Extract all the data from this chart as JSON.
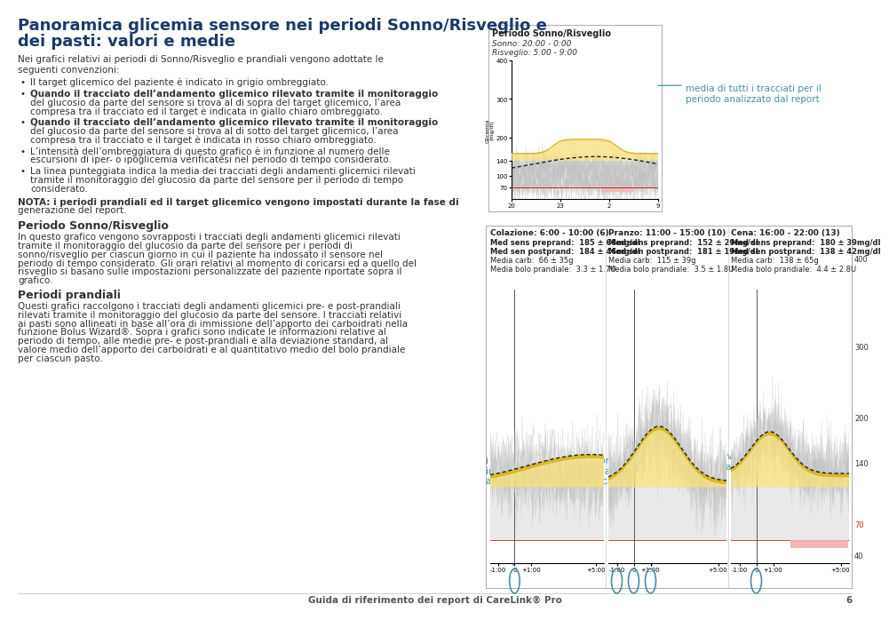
{
  "title_line1": "Panoramica glicemia sensore nei periodi Sonno/Risveglio e",
  "title_line2": "dei pasti: valori e medie",
  "title_color": "#1a3a6b",
  "bg_color": "#ffffff",
  "text_color": "#333333",
  "intro_text": "Nei grafici relativi ai periodi di Sonno/Risveglio e prandiali vengono adottate le\nseguenti convenzioni:",
  "bullets": [
    "Il target glicemico del paziente è indicato in grigio ombreggiato.",
    "Quando il tracciato dell’andamento glicemico rilevato tramite il monitoraggio\ndel glucosio da parte del sensore si trova al di sopra del target glicemico, l’area\ncompresa tra il tracciato ed il target è indicata in giallo chiaro ombreggiato.",
    "Quando il tracciato dell’andamento glicemico rilevato tramite il monitoraggio\ndel glucosio da parte del sensore si trova al di sotto del target glicemico, l’area\ncompresa tra il tracciato e il target è indicata in rosso chiaro ombreggiato.",
    "L’intensità dell’ombreggiatura di questo grafico è in funzione al numero delle\nescursioni di iper- o ipoglicemia verificatesi nel periodo di tempo considerato.",
    "La linea punteggiata indica la media dei tracciati degli andamenti glicemici rilevati\ntramite il monitoraggio del glucosio da parte del sensore per il periodo di tempo\nconsiderato."
  ],
  "bullet_bold": [
    false,
    true,
    true,
    false,
    false
  ],
  "nota_text": "NOTA: i periodi prandiali ed il target glicemico vengono impostati durante la fase di\ngenerazione del report.",
  "section1_title": "Periodo Sonno/Risveglio",
  "section1_text": "In questo grafico vengono sovrapposti i tracciati degli andamenti glicemici rilevati\ntramite il monitoraggio del glucosio da parte del sensore per i periodi di\nsonno/risveglio per ciascun giorno in cui il paziente ha indossato il sensore nel\nperiodo di tempo considerato. Gli orari relativi al momento di coricarsi ed a quello del\nrisveglio si basano sulle impostazioni personalizzate del paziente riportate sopra il\ngrafico.",
  "section2_title": "Periodi prandiali",
  "section2_text": "Questi grafici raccolgono i tracciati degli andamenti glicemici pre- e post-prandiali\nrilevati tramite il monitoraggio del glucosio da parte del sensore. I tracciati relativi\nai pasti sono allineati in base all’ora di immissione dell’apporto dei carboidrati nella\nfunzione Bolus Wizard®. Sopra i grafici sono indicate le informazioni relative al\nperiodo di tempo, alle medie pre- e post-prandiali e alla deviazione standard, al\nvalore medio dell’apporto dei carboidrati e al quantitativo medio del bolo prandiale\nper ciascun pasto.",
  "footer_text": "Guida di riferimento dei report di CareLink® Pro",
  "footer_page": "6",
  "sleep_panel_title": "Periodo Sonno/Risveglio",
  "sleep_sonno": "Sonno: 20:00 - 0:00",
  "sleep_risveglio": "Risveglio: 5:00 - 9:00",
  "annotation1_text": "media di tutti i tracciati per il\nperiodo analizzato dal report",
  "annotation1_color": "#4a8fa0",
  "annotation2_text": "l’ora indicata è relativa alle immissioni dei\ncarboidrati, anziché all’ora effettiva",
  "annotation2_color": "#4a8fa0",
  "annotation3_text": "i tracciati relativi al sensore sono spostati\nin modo che i pasti siano allineati in base\nall’ora di immissione dei carboidrati",
  "annotation3_color": "#4a8fa0",
  "meal_titles": [
    "Colazione: 6:00 - 10:00 (6)",
    "Pranzo: 11:00 - 15:00 (10)",
    "Cena: 16:00 - 22:00 (13)"
  ],
  "meal_stats": [
    "Med sens preprand:  185 ± 68mg/dl\nMed sen postprand:  184 ± 46mg/dl\nMedia carb:  66 ± 35g\nMedia bolo prandiale:  3.3 ± 1.7U",
    "Med sens preprand:  152 ± 29mg/dl\nMed sen postprand:  181 ± 19mg/dl\nMedia carb:  115 ± 39g\nMedia bolo prandiale:  3.5 ± 1.8U",
    "Med sens preprand:  180 ± 39mg/dl\nMed sen postprand:  138 ± 42mg/dl\nMedia carb:  138 ± 65g\nMedia bolo prandiale:  4.4 ± 2.8U"
  ],
  "right_ylabels": [
    "400",
    "300",
    "200",
    "140",
    "70",
    "40"
  ],
  "right_ylabel_colors": [
    "#333333",
    "#333333",
    "#333333",
    "#333333",
    "#cc2222",
    "#333333"
  ]
}
